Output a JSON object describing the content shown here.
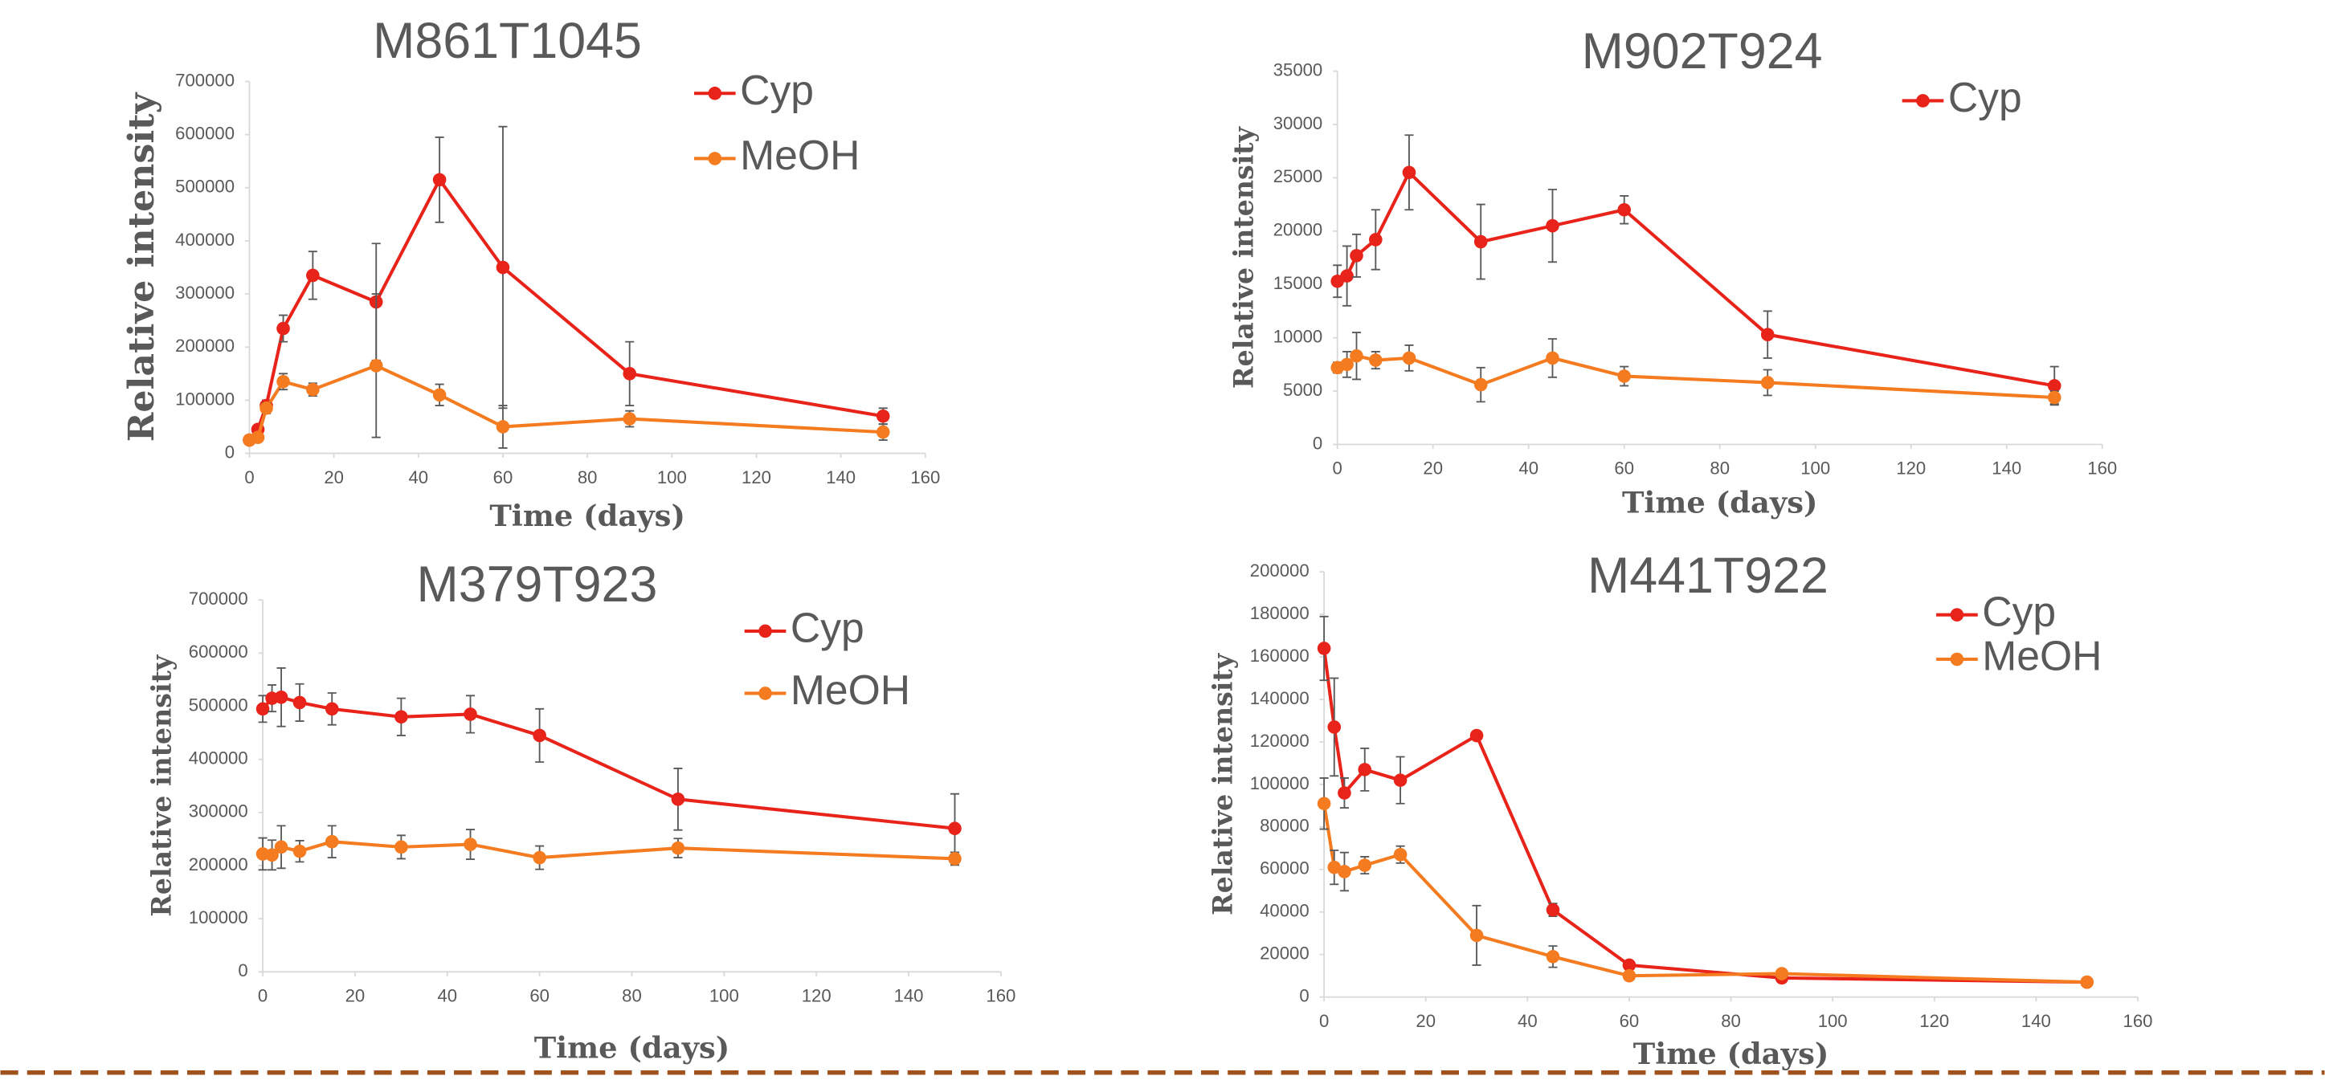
{
  "chart_data": [
    {
      "type": "line",
      "title": "M861T1045",
      "x_label": "Time (days)",
      "y_label": "Relative intensity",
      "x": [
        0,
        2,
        4,
        8,
        15,
        30,
        45,
        60,
        90,
        150
      ],
      "series": [
        {
          "name": "Cyp",
          "color": "#e8231a",
          "values": [
            25000,
            45000,
            90000,
            235000,
            335000,
            285000,
            515000,
            350000,
            150000,
            70000
          ],
          "errors": [
            5000,
            8000,
            10000,
            25000,
            45000,
            110000,
            80000,
            265000,
            60000,
            15000
          ]
        },
        {
          "name": "MeOH",
          "color": "#f47b20",
          "values": [
            25000,
            30000,
            85000,
            135000,
            120000,
            165000,
            110000,
            50000,
            65000,
            40000
          ],
          "errors": [
            5000,
            5000,
            10000,
            15000,
            12000,
            135000,
            20000,
            40000,
            15000,
            15000
          ]
        }
      ],
      "xlim": [
        0,
        160
      ],
      "xticks": [
        0,
        20,
        40,
        60,
        80,
        100,
        120,
        140,
        160
      ],
      "ylim": [
        0,
        700000
      ],
      "yticks": [
        0,
        100000,
        200000,
        300000,
        400000,
        500000,
        600000,
        700000
      ]
    },
    {
      "type": "line",
      "title": "M902T924",
      "x_label": "Time (days)",
      "y_label": "Relative intensity",
      "x": [
        0,
        2,
        4,
        8,
        15,
        30,
        45,
        60,
        90,
        150
      ],
      "series": [
        {
          "name": "Cyp",
          "color": "#e8231a",
          "values": [
            15300,
            15800,
            17700,
            19200,
            25500,
            19000,
            20500,
            22000,
            10300,
            5500
          ],
          "errors": [
            1500,
            2800,
            2000,
            2800,
            3500,
            3500,
            3400,
            1300,
            2200,
            1800
          ]
        },
        {
          "color": "#f47b20",
          "values": [
            7200,
            7500,
            8300,
            7900,
            8100,
            5600,
            8100,
            6400,
            5800,
            4400
          ],
          "errors": [
            500,
            1200,
            2200,
            800,
            1200,
            1600,
            1800,
            900,
            1200,
            600
          ]
        }
      ],
      "xlim": [
        0,
        160
      ],
      "xticks": [
        0,
        20,
        40,
        60,
        80,
        100,
        120,
        140,
        160
      ],
      "ylim": [
        0,
        35000
      ],
      "yticks": [
        0,
        5000,
        10000,
        15000,
        20000,
        25000,
        30000,
        35000
      ]
    },
    {
      "type": "line",
      "title": "M379T923",
      "x_label": "Time (days)",
      "y_label": "Relative intensity",
      "x": [
        0,
        2,
        4,
        8,
        15,
        30,
        45,
        60,
        90,
        150
      ],
      "series": [
        {
          "name": "Cyp",
          "color": "#e8231a",
          "values": [
            495000,
            515000,
            517000,
            507000,
            495000,
            480000,
            485000,
            445000,
            325000,
            270000
          ],
          "errors": [
            25000,
            25000,
            55000,
            35000,
            30000,
            35000,
            35000,
            50000,
            58000,
            65000
          ]
        },
        {
          "name": "MeOH",
          "color": "#f47b20",
          "values": [
            222000,
            220000,
            235000,
            227000,
            245000,
            235000,
            240000,
            215000,
            233000,
            213000
          ],
          "errors": [
            30000,
            28000,
            40000,
            20000,
            30000,
            22000,
            28000,
            22000,
            18000,
            12000
          ]
        }
      ],
      "xlim": [
        0,
        160
      ],
      "xticks": [
        0,
        20,
        40,
        60,
        80,
        100,
        120,
        140,
        160
      ],
      "ylim": [
        0,
        700000
      ],
      "yticks": [
        0,
        100000,
        200000,
        300000,
        400000,
        500000,
        600000,
        700000
      ]
    },
    {
      "type": "line",
      "title": "M441T922",
      "x_label": "Time (days)",
      "y_label": "Relative intensity",
      "x": [
        0,
        2,
        4,
        8,
        15,
        30,
        45,
        60,
        90,
        150
      ],
      "series": [
        {
          "name": "Cyp",
          "color": "#e8231a",
          "values": [
            164000,
            127000,
            96000,
            107000,
            102000,
            123000,
            41000,
            15000,
            9000,
            7000
          ],
          "errors": [
            15000,
            23000,
            7000,
            10000,
            11000,
            2000,
            3000,
            1500,
            1500,
            1000
          ]
        },
        {
          "name": "MeOH",
          "color": "#f47b20",
          "values": [
            91000,
            61000,
            59000,
            62000,
            67000,
            29000,
            19000,
            10000,
            11000,
            7000
          ],
          "errors": [
            12000,
            8000,
            9000,
            4000,
            4000,
            14000,
            5000,
            1500,
            2000,
            1000
          ]
        }
      ],
      "xlim": [
        0,
        160
      ],
      "xticks": [
        0,
        20,
        40,
        60,
        80,
        100,
        120,
        140,
        160
      ],
      "ylim": [
        0,
        200000
      ],
      "yticks": [
        0,
        20000,
        40000,
        60000,
        80000,
        100000,
        120000,
        140000,
        160000,
        180000,
        200000
      ]
    }
  ]
}
